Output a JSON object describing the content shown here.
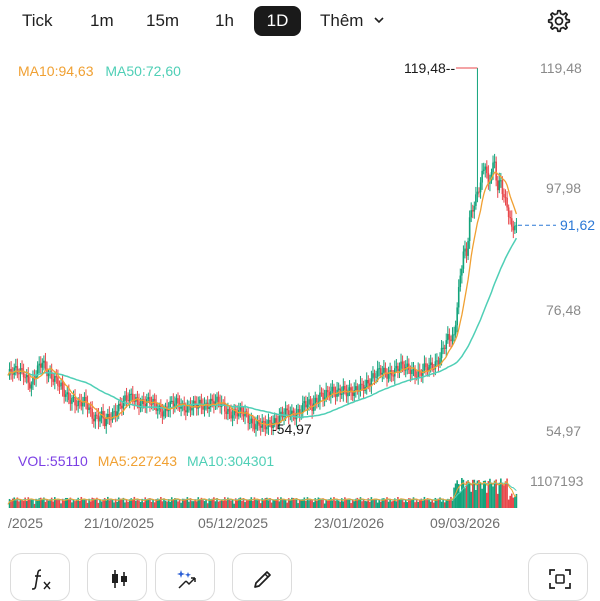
{
  "timeframes": {
    "tick": "Tick",
    "m1": "1m",
    "m15": "15m",
    "h1": "1h",
    "d1": "1D",
    "more": "Thêm"
  },
  "icons": {
    "settings": "gear-icon",
    "more_caret": "chevron-down-icon",
    "tools": [
      "fx-icon",
      "candlestick-icon",
      "magic-wand-icon",
      "pencil-icon",
      "fullscreen-icon"
    ]
  },
  "price_legend": {
    "ma10": "MA10:94,63",
    "ma50": "MA50:72,60"
  },
  "volume_legend": {
    "vol": "VOL:55110",
    "ma5": "MA5:227243",
    "ma10": "MA10:304301"
  },
  "price_axis": [
    "119,48",
    "97,98",
    "76,48",
    "54,97"
  ],
  "volume_axis_max": "1107193",
  "current_price": "91,62",
  "high_marker": "119,48",
  "low_marker": "54,97",
  "dates": [
    "/2025",
    "21/10/2025",
    "05/12/2025",
    "23/01/2026",
    "09/03/2026"
  ],
  "colors": {
    "up": "#12a37b",
    "down": "#e8474b",
    "ma10": "#f0a032",
    "ma50": "#4fcfb6",
    "volume_label": "#7b3fe4",
    "current_price": "#2b78d6"
  },
  "chart_data": {
    "type": "candlestick",
    "period": "1D",
    "y_range": [
      54.97,
      119.48
    ],
    "highest": 119.48,
    "lowest": 54.97,
    "last_close": 91.62,
    "ma10_last": 94.63,
    "ma50_last": 72.6,
    "volume_last": 55110,
    "volume_ma5_last": 227243,
    "volume_ma10_last": 304301,
    "volume_max": 1107193
  }
}
